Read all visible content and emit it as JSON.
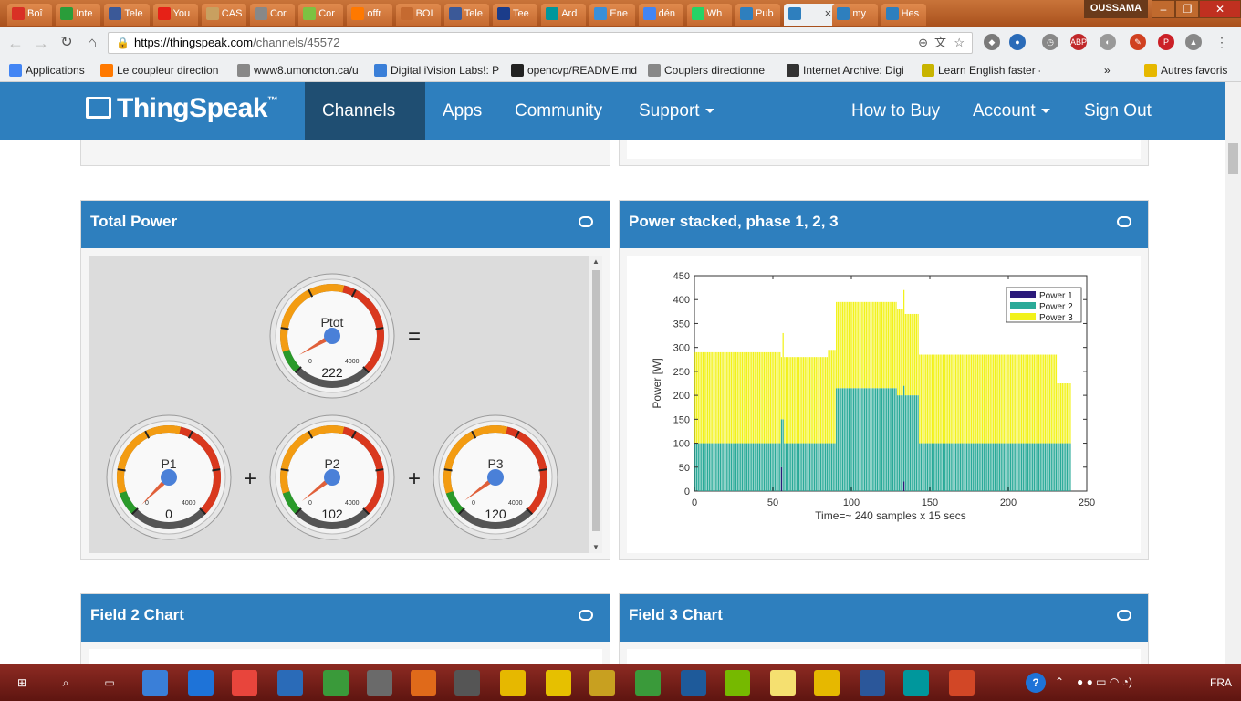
{
  "browser": {
    "tabs": [
      {
        "label": "Boî",
        "icon": "gmail-icon",
        "color": "#d93025"
      },
      {
        "label": "Inte",
        "icon": "refresh-icon",
        "color": "#2a9d3a"
      },
      {
        "label": "Tele",
        "icon": "facebook-icon",
        "color": "#3b5998"
      },
      {
        "label": "You",
        "icon": "youtube-icon",
        "color": "#e62117"
      },
      {
        "label": "CAS",
        "icon": "cas-icon",
        "color": "#c8a060"
      },
      {
        "label": "Cor",
        "icon": "page-icon",
        "color": "#888888"
      },
      {
        "label": "Cor",
        "icon": "bolt-icon",
        "color": "#7cc242"
      },
      {
        "label": "offr",
        "icon": "orange-icon",
        "color": "#ff7900"
      },
      {
        "label": "BOI",
        "icon": "blank-icon",
        "color": "#c56a30"
      },
      {
        "label": "Tele",
        "icon": "facebook-icon",
        "color": "#3b5998"
      },
      {
        "label": "Tee",
        "icon": "pjrc-icon",
        "color": "#1b3c8a"
      },
      {
        "label": "Ard",
        "icon": "arduino-icon",
        "color": "#00979c"
      },
      {
        "label": "Ene",
        "icon": "energy-icon",
        "color": "#3a8fd8"
      },
      {
        "label": "dén",
        "icon": "google-icon",
        "color": "#4285f4"
      },
      {
        "label": "Wh",
        "icon": "whatsapp-icon",
        "color": "#25d366"
      },
      {
        "label": "Pub",
        "icon": "thingspeak-icon",
        "color": "#2e7fbe"
      },
      {
        "label": "",
        "icon": "thingspeak-icon",
        "color": "#2e7fbe",
        "active": true
      },
      {
        "label": "my",
        "icon": "thingspeak-icon",
        "color": "#2e7fbe"
      },
      {
        "label": "Hes",
        "icon": "thingspeak-icon",
        "color": "#2e7fbe"
      }
    ],
    "user": "OUSSAMA",
    "url_host": "https://thingspeak.com",
    "url_path": "/channels/45572",
    "bookmarks": [
      {
        "label": "Applications",
        "icon": "apps-icon",
        "color": "#4285f4"
      },
      {
        "label": "Le coupleur direction",
        "icon": "orange-icon",
        "color": "#ff7900"
      },
      {
        "label": "www8.umoncton.ca/u",
        "icon": "page-icon",
        "color": "#888888"
      },
      {
        "label": "Digital iVision Labs!: P",
        "icon": "ivision-icon",
        "color": "#3a7fd8"
      },
      {
        "label": "opencvp/README.md",
        "icon": "github-icon",
        "color": "#222222"
      },
      {
        "label": "Couplers directionne",
        "icon": "page-icon",
        "color": "#888888"
      },
      {
        "label": "Internet Archive: Digi",
        "icon": "archive-icon",
        "color": "#333333"
      },
      {
        "label": "Learn English faster -",
        "icon": "learn-icon",
        "color": "#c8b400"
      }
    ],
    "bookmarks_more": "»",
    "other_bookmarks": "Autres favoris"
  },
  "ts_nav": {
    "brand": "ThingSpeak",
    "tm": "™",
    "items": [
      "Channels",
      "Apps",
      "Community",
      "Support"
    ],
    "right_items": [
      "How to Buy",
      "Account",
      "Sign Out"
    ]
  },
  "panels": {
    "total_power": {
      "title": "Total Power",
      "gauges": [
        {
          "label": "Ptot",
          "value": "222",
          "min": "0",
          "max": "4000",
          "level": 0.0555
        },
        {
          "label": "P1",
          "value": "0",
          "min": "0",
          "max": "4000",
          "level": 0
        },
        {
          "label": "P2",
          "value": "102",
          "min": "0",
          "max": "4000",
          "level": 0.0255
        },
        {
          "label": "P3",
          "value": "120",
          "min": "0",
          "max": "4000",
          "level": 0.03
        }
      ],
      "ops": [
        "=",
        "+",
        "+"
      ]
    },
    "power_stacked": {
      "title": "Power stacked, phase 1, 2, 3"
    },
    "field2": {
      "title": "Field 2 Chart"
    },
    "field3": {
      "title": "Field 3 Chart"
    }
  },
  "chart_data": {
    "type": "bar",
    "stacked": true,
    "xlabel": "Time=~ 240 samples x 15 secs",
    "ylabel": "Power [W]",
    "xlim": [
      0,
      250
    ],
    "ylim": [
      0,
      450
    ],
    "xticks": [
      0,
      50,
      100,
      150,
      200,
      250
    ],
    "yticks": [
      0,
      50,
      100,
      150,
      200,
      250,
      300,
      350,
      400,
      450
    ],
    "legend_position": "top-right",
    "series": [
      {
        "name": "Power 1",
        "color": "#2b1a7a"
      },
      {
        "name": "Power 2",
        "color": "#2aaa98"
      },
      {
        "name": "Power 3",
        "color": "#f2f21a"
      }
    ],
    "segments": [
      {
        "x_start": 0,
        "x_end": 54,
        "p1": 0,
        "p2": 100,
        "p3": 190
      },
      {
        "x_start": 55,
        "x_end": 55,
        "p1": 50,
        "p2": 100,
        "p3": 130
      },
      {
        "x_start": 56,
        "x_end": 56,
        "p1": 0,
        "p2": 150,
        "p3": 180
      },
      {
        "x_start": 57,
        "x_end": 84,
        "p1": 0,
        "p2": 100,
        "p3": 180
      },
      {
        "x_start": 85,
        "x_end": 89,
        "p1": 0,
        "p2": 100,
        "p3": 195
      },
      {
        "x_start": 90,
        "x_end": 128,
        "p1": 0,
        "p2": 215,
        "p3": 180
      },
      {
        "x_start": 129,
        "x_end": 132,
        "p1": 0,
        "p2": 200,
        "p3": 180
      },
      {
        "x_start": 133,
        "x_end": 133,
        "p1": 20,
        "p2": 200,
        "p3": 200
      },
      {
        "x_start": 134,
        "x_end": 142,
        "p1": 0,
        "p2": 200,
        "p3": 170
      },
      {
        "x_start": 143,
        "x_end": 230,
        "p1": 0,
        "p2": 100,
        "p3": 185
      },
      {
        "x_start": 231,
        "x_end": 239,
        "p1": 0,
        "p2": 100,
        "p3": 125
      }
    ]
  },
  "taskbar": {
    "apps": [
      {
        "name": "start-icon",
        "color": "#7a1e1e"
      },
      {
        "name": "search-icon",
        "color": "#7a1e1e"
      },
      {
        "name": "task-view-icon",
        "color": "#7a1e1e"
      },
      {
        "name": "explorer-icon",
        "color": "#3a7fd8"
      },
      {
        "name": "edge-icon",
        "color": "#1e73d8"
      },
      {
        "name": "chrome-icon",
        "color": "#e8453c"
      },
      {
        "name": "thunderbird-icon",
        "color": "#2a6bb8"
      },
      {
        "name": "internet-icon",
        "color": "#3a9a3a"
      },
      {
        "name": "app-icon",
        "color": "#6a6a6a"
      },
      {
        "name": "matlab-icon",
        "color": "#e06a1a"
      },
      {
        "name": "app2-icon",
        "color": "#555555"
      },
      {
        "name": "app3-icon",
        "color": "#e6b800"
      },
      {
        "name": "sun-icon",
        "color": "#e6c000"
      },
      {
        "name": "app4-icon",
        "color": "#c8a020"
      },
      {
        "name": "w3-icon",
        "color": "#3a9a3a"
      },
      {
        "name": "app5-icon",
        "color": "#1e5a9a"
      },
      {
        "name": "nvidia-icon",
        "color": "#76b900"
      },
      {
        "name": "notes-icon",
        "color": "#f5e070"
      },
      {
        "name": "folder-icon",
        "color": "#e6b800"
      },
      {
        "name": "word-icon",
        "color": "#2b579a"
      },
      {
        "name": "arduino-icon",
        "color": "#00979c"
      },
      {
        "name": "powerpoint-icon",
        "color": "#d24726"
      }
    ],
    "lang": "FRA"
  }
}
